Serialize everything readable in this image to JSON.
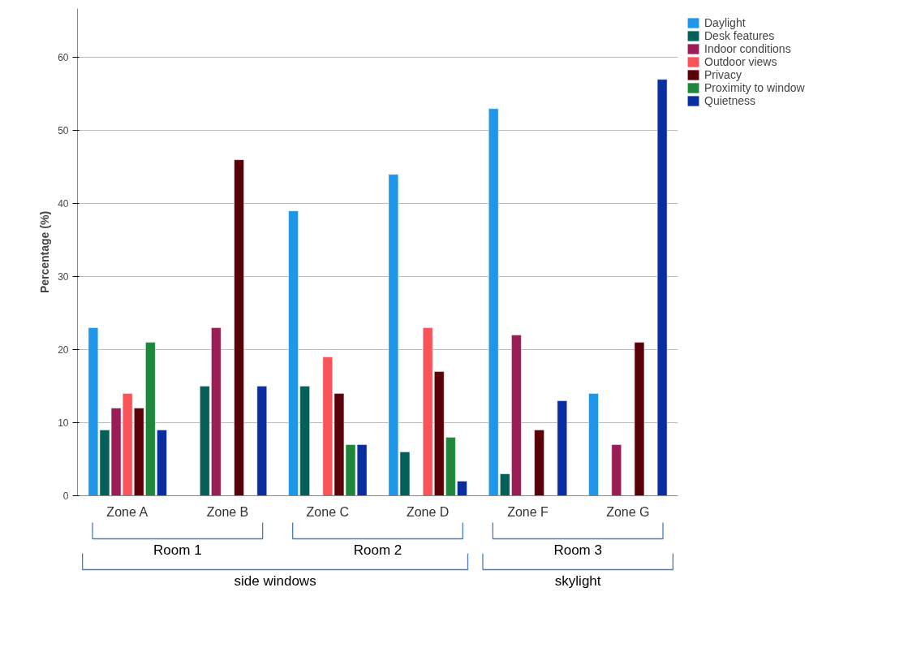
{
  "chart_data": {
    "type": "bar",
    "categories": [
      "Zone A",
      "Zone B",
      "Zone C",
      "Zone D",
      "Zone F",
      "Zone G"
    ],
    "ylabel": "Percentage (%)",
    "ylim": [
      0,
      66.7
    ],
    "yticks": [
      0,
      10,
      20,
      30,
      40,
      50,
      60
    ],
    "grid": "y",
    "legend": "right",
    "series": [
      {
        "name": "Daylight",
        "color": "#1f96e8",
        "values": [
          23,
          null,
          39,
          44,
          53,
          14
        ]
      },
      {
        "name": "Desk features",
        "color": "#05605a",
        "values": [
          9,
          15,
          15,
          6,
          3,
          null
        ]
      },
      {
        "name": "Indoor conditions",
        "color": "#9b1d55",
        "values": [
          12,
          23,
          null,
          null,
          22,
          7
        ]
      },
      {
        "name": "Outdoor views",
        "color": "#f85358",
        "values": [
          14,
          null,
          19,
          23,
          null,
          null
        ]
      },
      {
        "name": "Privacy",
        "color": "#5a0008",
        "values": [
          12,
          46,
          14,
          17,
          9,
          21
        ]
      },
      {
        "name": "Proximity to window",
        "color": "#1e873c",
        "values": [
          21,
          null,
          7,
          8,
          null,
          null
        ]
      },
      {
        "name": "Quietness",
        "color": "#0a2ea0",
        "values": [
          9,
          15,
          7,
          2,
          13,
          57
        ]
      }
    ],
    "annotations": [
      "Room 1",
      "Room 2",
      "Room 3",
      "side windows",
      "skylight"
    ]
  }
}
